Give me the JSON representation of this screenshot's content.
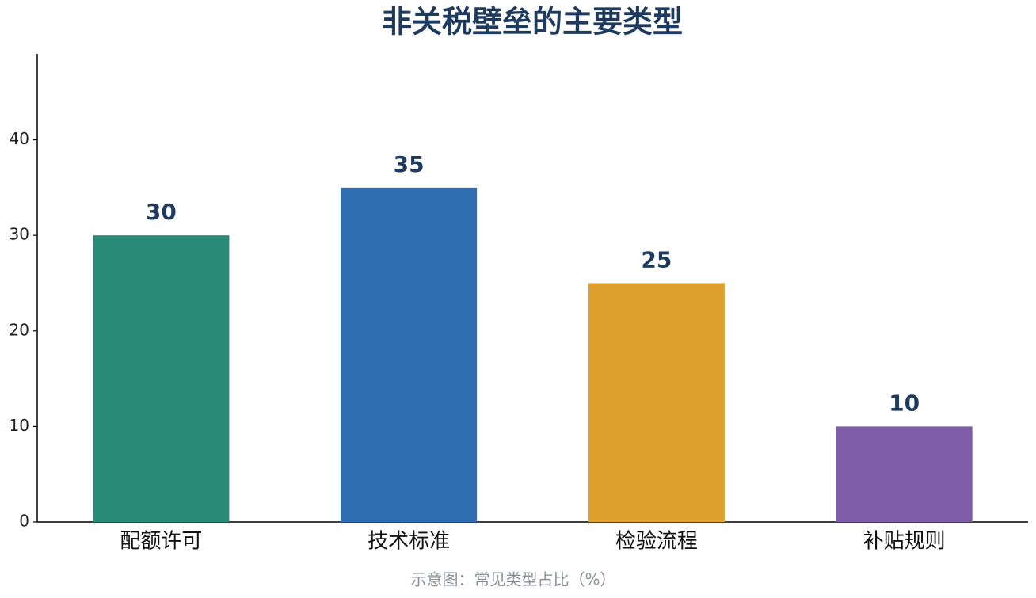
{
  "chart_data": {
    "type": "bar",
    "title": "非关税壁垒的主要类型",
    "categories": [
      "配额许可",
      "技术标准",
      "检验流程",
      "补贴规则"
    ],
    "values": [
      30,
      35,
      25,
      10
    ],
    "colors": [
      "#2a8a78",
      "#306db0",
      "#e0a02e",
      "#7e5ca8"
    ],
    "ylim": [
      0,
      49
    ],
    "yticks": [
      0,
      10,
      20,
      30,
      40
    ],
    "caption": "示意图：常见类型占比（%）"
  }
}
